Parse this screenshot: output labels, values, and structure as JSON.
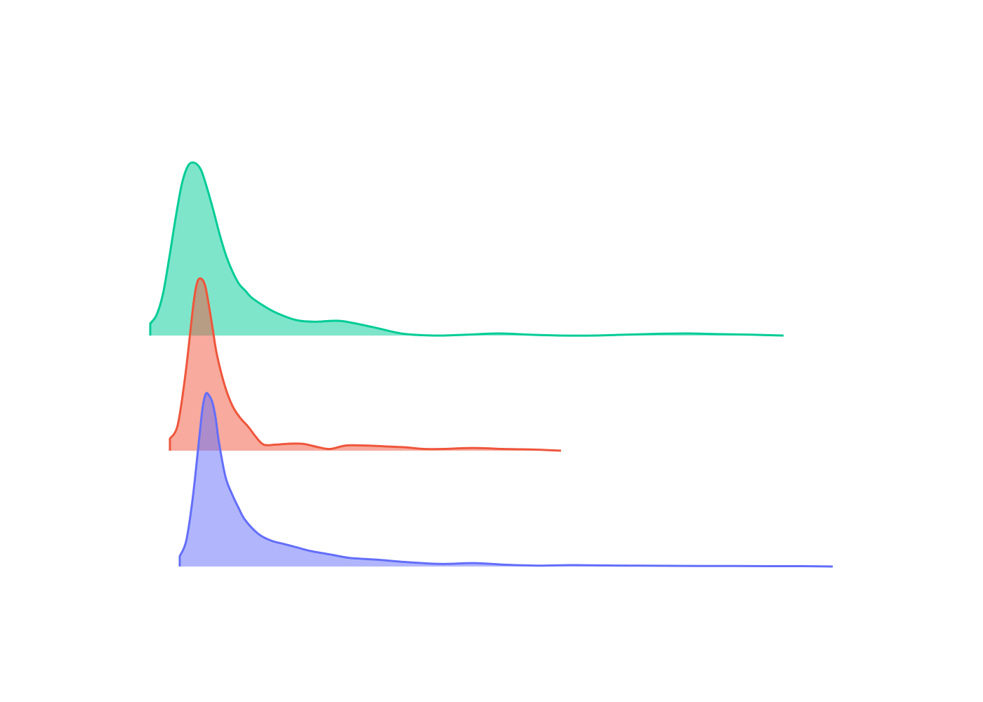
{
  "chart_data": {
    "type": "area",
    "grid": false,
    "legend": "none",
    "xlim": [
      0,
      1
    ],
    "series": [
      {
        "color": "#00cc96",
        "x": [
          0.0,
          0.01,
          0.02,
          0.03,
          0.04,
          0.05,
          0.06,
          0.07,
          0.08,
          0.09,
          0.1,
          0.11,
          0.12,
          0.13,
          0.14,
          0.15,
          0.16,
          0.18,
          0.2,
          0.23,
          0.26,
          0.3,
          0.35,
          0.4,
          0.45,
          0.5,
          0.55,
          0.6,
          0.65,
          0.7,
          0.75,
          0.8,
          0.85,
          0.9,
          0.95,
          1.0
        ],
        "y": [
          0.07,
          0.12,
          0.24,
          0.45,
          0.68,
          0.88,
          0.985,
          1.0,
          0.96,
          0.85,
          0.72,
          0.58,
          0.46,
          0.37,
          0.3,
          0.26,
          0.22,
          0.17,
          0.13,
          0.09,
          0.08,
          0.085,
          0.05,
          0.01,
          0.0,
          0.005,
          0.012,
          0.005,
          0.0,
          0.0,
          0.005,
          0.01,
          0.012,
          0.008,
          0.005,
          0.0
        ]
      },
      {
        "color": "#ef553b",
        "x": [
          0.0,
          0.02,
          0.04,
          0.06,
          0.07,
          0.08,
          0.09,
          0.1,
          0.11,
          0.12,
          0.14,
          0.16,
          0.18,
          0.2,
          0.22,
          0.24,
          0.27,
          0.3,
          0.34,
          0.38,
          0.41,
          0.45,
          0.5,
          0.55,
          0.6,
          0.65,
          0.7,
          0.75,
          0.8,
          0.85,
          0.9,
          0.95,
          1.0
        ],
        "y": [
          0.07,
          0.15,
          0.45,
          0.85,
          0.98,
          1.0,
          0.96,
          0.84,
          0.7,
          0.56,
          0.38,
          0.26,
          0.19,
          0.14,
          0.08,
          0.035,
          0.035,
          0.04,
          0.04,
          0.02,
          0.01,
          0.03,
          0.03,
          0.025,
          0.02,
          0.01,
          0.01,
          0.015,
          0.015,
          0.01,
          0.008,
          0.005,
          0.0
        ]
      },
      {
        "color": "#636efa",
        "x": [
          0.0,
          0.01,
          0.02,
          0.03,
          0.035,
          0.04,
          0.045,
          0.05,
          0.055,
          0.06,
          0.07,
          0.08,
          0.09,
          0.1,
          0.12,
          0.14,
          0.16,
          0.18,
          0.2,
          0.23,
          0.26,
          0.3,
          0.35,
          0.4,
          0.45,
          0.5,
          0.55,
          0.6,
          0.65,
          0.7,
          0.75,
          0.8,
          0.85,
          0.9,
          0.95,
          1.0
        ],
        "y": [
          0.06,
          0.15,
          0.4,
          0.75,
          0.92,
          1.0,
          0.99,
          0.95,
          0.86,
          0.72,
          0.52,
          0.42,
          0.34,
          0.27,
          0.19,
          0.15,
          0.13,
          0.11,
          0.09,
          0.07,
          0.05,
          0.04,
          0.025,
          0.015,
          0.02,
          0.01,
          0.005,
          0.008,
          0.006,
          0.005,
          0.004,
          0.003,
          0.003,
          0.002,
          0.002,
          0.0
        ]
      }
    ]
  }
}
